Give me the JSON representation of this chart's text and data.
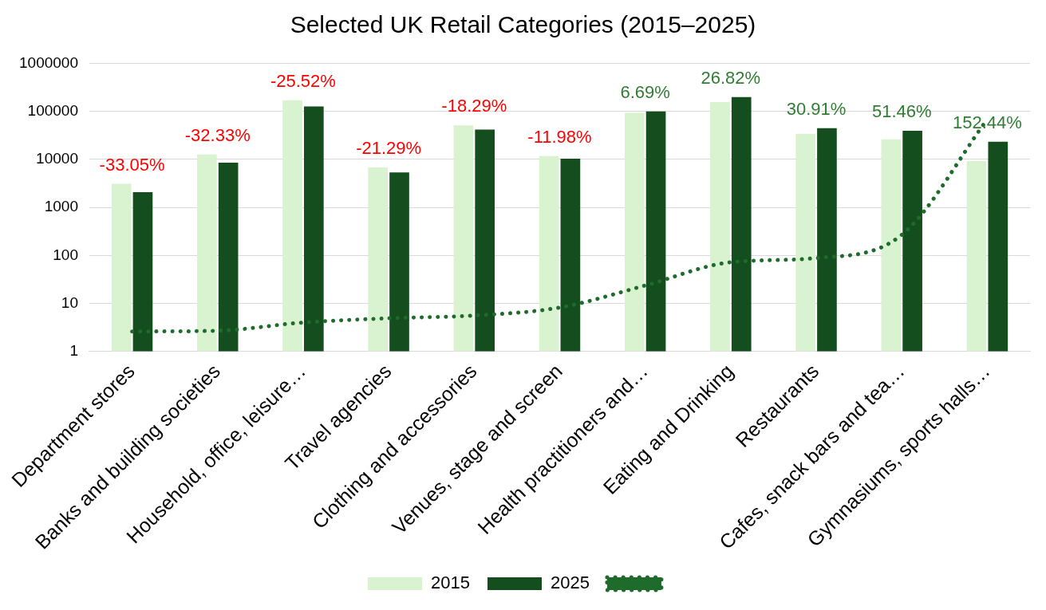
{
  "chart_data": {
    "type": "bar",
    "title": "Selected UK Retail Categories (2015–2025)",
    "categories": [
      "Department stores",
      "Banks and building societies",
      "Household, office, leisure…",
      "Travel agencies",
      "Clothing and accessories",
      "Venues, stage and screen",
      "Health practitioners and…",
      "Eating and Drinking",
      "Restaurants",
      "Cafes, snack bars and tea…",
      "Gymnasiums, sports halls…"
    ],
    "series": [
      {
        "name": "2015",
        "color": "#d9f2d0",
        "values": [
          3100,
          12600,
          170000,
          6800,
          51000,
          11700,
          93000,
          156000,
          34000,
          26000,
          9200
        ]
      },
      {
        "name": "2025",
        "color": "#144d1e",
        "values": [
          2075,
          8530,
          126600,
          5350,
          41700,
          10300,
          99200,
          197800,
          44500,
          39400,
          23200
        ]
      },
      {
        "type": "line",
        "color": "#1e6b2c",
        "line_style": "dotted",
        "marker": "none",
        "values": [
          2.6,
          2.7,
          4,
          4.9,
          5.6,
          8.2,
          23.6,
          72,
          88,
          268,
          68000
        ]
      }
    ],
    "log": true,
    "ylim": [
      1,
      1000000
    ],
    "yticks": [
      1,
      10,
      100,
      1000,
      10000,
      100000,
      1000000
    ],
    "annotations": [
      {
        "text": "-33.05%",
        "x": "Department stores",
        "y": 3100
      },
      {
        "text": "-32.33%",
        "x": "Banks and building societies",
        "y": 12600
      },
      {
        "text": "-25.52%",
        "x": "Household, office, leisure…",
        "y": 170000
      },
      {
        "text": "-21.29%",
        "x": "Travel agencies",
        "y": 6800
      },
      {
        "text": "-18.29%",
        "x": "Clothing and accessories",
        "y": 51000
      },
      {
        "text": "-11.98%",
        "x": "Venues, stage and screen",
        "y": 11700
      },
      {
        "text": "6.69%",
        "x": "Health practitioners and…",
        "y": 99200
      },
      {
        "text": "26.82%",
        "x": "Eating and Drinking",
        "y": 197800
      },
      {
        "text": "30.91%",
        "x": "Restaurants",
        "y": 44500
      },
      {
        "text": "51.46%",
        "x": "Cafes, snack bars and tea…",
        "y": 39400
      },
      {
        "text": "152.44%",
        "x": "Gymnasiums, sports halls…",
        "y": 23200
      }
    ],
    "grid": "y",
    "legend": "bottom"
  }
}
